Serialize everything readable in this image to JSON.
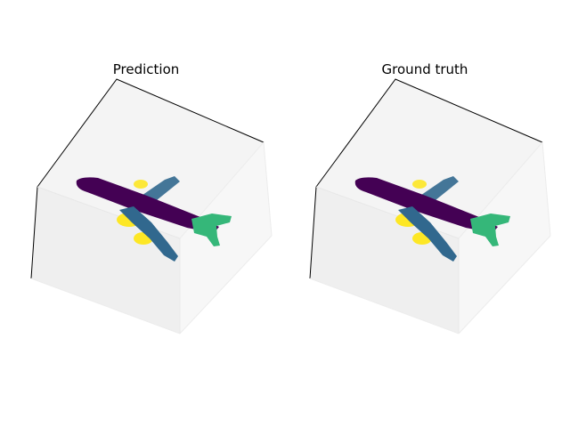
{
  "chart_data": [
    {
      "type": "scatter",
      "title": "Prediction",
      "projection": "3d",
      "colormap": "viridis",
      "grid": false,
      "axes_visible": false,
      "object": "airplane",
      "series": [
        {
          "part": "fuselage",
          "color": "#440154"
        },
        {
          "part": "wing",
          "color": "#31688e"
        },
        {
          "part": "tail",
          "color": "#35b779"
        },
        {
          "part": "engine",
          "color": "#fde725"
        }
      ]
    },
    {
      "type": "scatter",
      "title": "Ground truth",
      "projection": "3d",
      "colormap": "viridis",
      "grid": false,
      "axes_visible": false,
      "object": "airplane",
      "series": [
        {
          "part": "fuselage",
          "color": "#440154"
        },
        {
          "part": "wing",
          "color": "#31688e"
        },
        {
          "part": "tail",
          "color": "#35b779"
        },
        {
          "part": "engine",
          "color": "#fde725"
        }
      ]
    }
  ]
}
